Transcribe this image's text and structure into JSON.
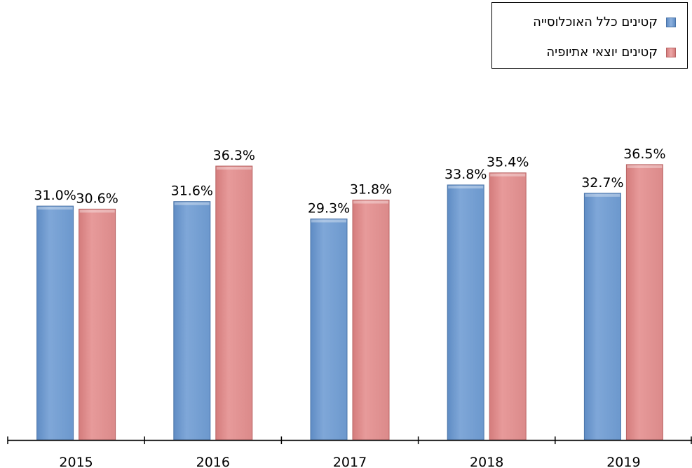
{
  "chart_data": {
    "type": "bar",
    "categories": [
      "2015",
      "2016",
      "2017",
      "2018",
      "2019"
    ],
    "series": [
      {
        "name": "קטינים כלל האוכלוסייה",
        "values": [
          31.0,
          31.6,
          29.3,
          33.8,
          32.7
        ],
        "labels": [
          "31.0%",
          "31.6%",
          "29.3%",
          "33.8%",
          "32.7%"
        ],
        "color": "#7aa3d5"
      },
      {
        "name": "קטינים יוצאי אתיופיה",
        "values": [
          30.6,
          36.3,
          31.8,
          35.4,
          36.5
        ],
        "labels": [
          "30.6%",
          "36.3%",
          "31.8%",
          "35.4%",
          "36.5%"
        ],
        "color": "#e39494"
      }
    ],
    "ylim": [
      0,
      40
    ],
    "grid": false,
    "legend_position": "top-right"
  },
  "colors": {
    "series_0": "#7aa3d5",
    "series_1": "#e39494",
    "axis": "#000000"
  }
}
